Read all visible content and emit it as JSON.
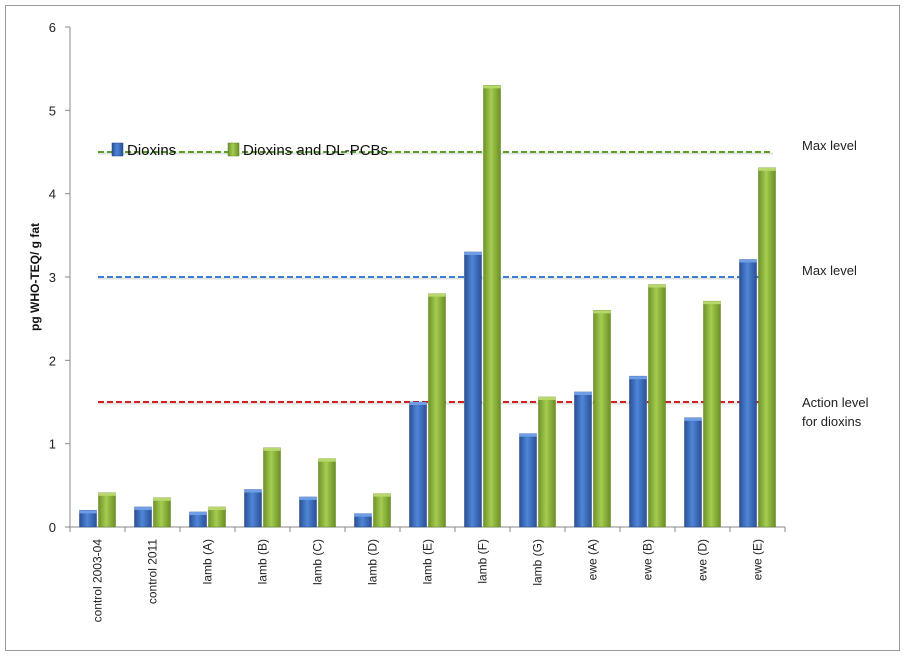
{
  "chart_data": {
    "type": "bar",
    "title": "",
    "xlabel": "",
    "ylabel": "pg WHO-TEQ/ g fat",
    "ylim": [
      0,
      6
    ],
    "yticks": [
      "0",
      "1",
      "2",
      "3",
      "4",
      "5",
      "6"
    ],
    "categories": [
      "control 2003-04",
      "control 2011",
      "lamb (A)",
      "lamb (B)",
      "lamb (C)",
      "lamb (D)",
      "lamb (E)",
      "lamb (F)",
      "lamb (G)",
      "ewe (A)",
      "ewe (B)",
      "ewe (D)",
      "ewe (E)"
    ],
    "series": [
      {
        "name": "Dioxins",
        "color": "#3f6fc0",
        "values": [
          0.2,
          0.24,
          0.18,
          0.45,
          0.36,
          0.16,
          1.5,
          3.3,
          1.12,
          1.62,
          1.81,
          1.31,
          3.21
        ]
      },
      {
        "name": "Dioxins and DL-PCBs",
        "color": "#8cb43a",
        "values": [
          0.41,
          0.35,
          0.24,
          0.95,
          0.82,
          0.4,
          2.8,
          5.3,
          1.56,
          2.6,
          2.91,
          2.71,
          4.31
        ]
      }
    ],
    "reference_lines": [
      {
        "value": 4.5,
        "color": "#5a9e2a",
        "label_lines": [
          "Max level"
        ]
      },
      {
        "value": 3.0,
        "color": "#3b7fd4",
        "label_lines": [
          "Max level"
        ]
      },
      {
        "value": 1.5,
        "color": "#d42020",
        "label_lines": [
          "Action level",
          "for dioxins"
        ]
      }
    ],
    "grid": false,
    "legend_position": "top-left"
  }
}
